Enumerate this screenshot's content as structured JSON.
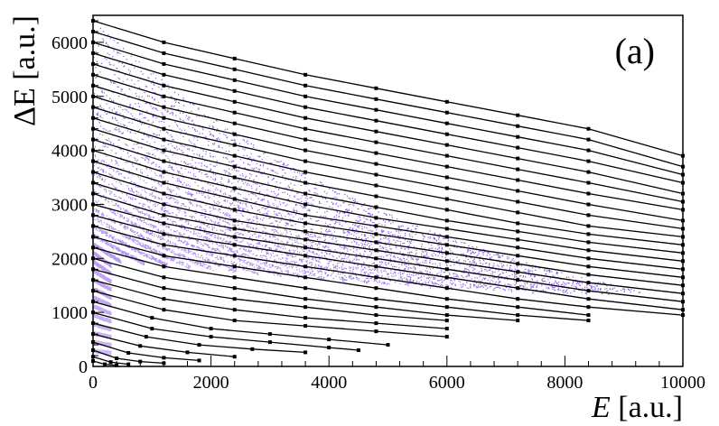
{
  "chart_data": {
    "type": "scatter",
    "panel_label": "(a)",
    "xlabel_var": "E",
    "xlabel_unit": " [a.u.]",
    "ylabel_var": "ΔE",
    "ylabel_unit": " [a.u.]",
    "xlim": [
      0,
      10000
    ],
    "ylim": [
      0,
      6500
    ],
    "x_ticks": [
      0,
      2000,
      4000,
      6000,
      8000,
      10000
    ],
    "y_ticks": [
      0,
      1000,
      2000,
      3000,
      4000,
      5000,
      6000
    ],
    "grid": false,
    "legend": "none",
    "colors": {
      "scatter": "#7b3fe4",
      "fit_lines": "#000000",
      "frame": "#000000"
    },
    "band_count": 38,
    "band_params": [
      {
        "y0": 6400,
        "k": 0.00016,
        "end_x": 9300,
        "alpha": 0.4
      },
      {
        "y0": 6250,
        "k": 0.00018,
        "end_x": 9200,
        "alpha": 0.45
      },
      {
        "y0": 6100,
        "k": 0.00019,
        "end_x": 9100,
        "alpha": 0.5
      },
      {
        "y0": 5950,
        "k": 0.0002,
        "end_x": 9000,
        "alpha": 0.55
      },
      {
        "y0": 5800,
        "k": 0.00021,
        "end_x": 8900,
        "alpha": 0.6
      },
      {
        "y0": 5650,
        "k": 0.00022,
        "end_x": 8800,
        "alpha": 0.65
      },
      {
        "y0": 5500,
        "k": 0.00023,
        "end_x": 8700,
        "alpha": 0.7
      }
    ],
    "fit_lines": [
      {
        "x": [
          0,
          1200,
          2400,
          3600,
          4800,
          6000,
          7200,
          8400,
          10000
        ],
        "y": [
          6400,
          6000,
          5700,
          5400,
          5150,
          4900,
          4650,
          4400,
          3900
        ]
      },
      {
        "x": [
          0,
          1200,
          2400,
          3600,
          4800,
          6000,
          7200,
          8400,
          10000
        ],
        "y": [
          6200,
          5800,
          5500,
          5200,
          4950,
          4700,
          4450,
          4200,
          3700
        ]
      },
      {
        "x": [
          0,
          1200,
          2400,
          3600,
          4800,
          6000,
          7200,
          8400,
          10000
        ],
        "y": [
          6000,
          5600,
          5300,
          5000,
          4750,
          4500,
          4250,
          4000,
          3550
        ]
      },
      {
        "x": [
          0,
          1200,
          2400,
          3600,
          4800,
          6000,
          7200,
          8400,
          10000
        ],
        "y": [
          5800,
          5400,
          5100,
          4800,
          4550,
          4300,
          4050,
          3800,
          3400
        ]
      },
      {
        "x": [
          0,
          1200,
          2400,
          3600,
          4800,
          6000,
          7200,
          8400,
          10000
        ],
        "y": [
          5600,
          5200,
          4900,
          4600,
          4350,
          4100,
          3850,
          3600,
          3200
        ]
      },
      {
        "x": [
          0,
          1200,
          2400,
          3600,
          4800,
          6000,
          7200,
          8400,
          10000
        ],
        "y": [
          5400,
          5000,
          4700,
          4400,
          4150,
          3900,
          3650,
          3400,
          3050
        ]
      },
      {
        "x": [
          0,
          1200,
          2400,
          3600,
          4800,
          6000,
          7200,
          8400,
          10000
        ],
        "y": [
          5200,
          4800,
          4500,
          4200,
          3950,
          3700,
          3450,
          3200,
          2900
        ]
      },
      {
        "x": [
          0,
          1200,
          2400,
          3600,
          4800,
          6000,
          7200,
          8400,
          10000
        ],
        "y": [
          5000,
          4600,
          4300,
          4000,
          3750,
          3500,
          3250,
          3000,
          2700
        ]
      },
      {
        "x": [
          0,
          1200,
          2400,
          3600,
          4800,
          6000,
          7200,
          8400,
          10000
        ],
        "y": [
          4800,
          4400,
          4100,
          3800,
          3550,
          3300,
          3050,
          2800,
          2550
        ]
      },
      {
        "x": [
          0,
          1200,
          2400,
          3600,
          4800,
          6000,
          7200,
          8400,
          10000
        ],
        "y": [
          4600,
          4200,
          3900,
          3600,
          3350,
          3100,
          2850,
          2600,
          2400
        ]
      },
      {
        "x": [
          0,
          1200,
          2400,
          3600,
          4800,
          6000,
          7200,
          8400,
          10000
        ],
        "y": [
          4400,
          4000,
          3700,
          3400,
          3150,
          2900,
          2650,
          2450,
          2250
        ]
      },
      {
        "x": [
          0,
          1200,
          2400,
          3600,
          4800,
          6000,
          7200,
          8400,
          10000
        ],
        "y": [
          4200,
          3800,
          3500,
          3200,
          2950,
          2700,
          2500,
          2300,
          2100
        ]
      },
      {
        "x": [
          0,
          1200,
          2400,
          3600,
          4800,
          6000,
          7200,
          8400,
          10000
        ],
        "y": [
          4000,
          3600,
          3300,
          3000,
          2750,
          2550,
          2350,
          2150,
          1950
        ]
      },
      {
        "x": [
          0,
          1200,
          2400,
          3600,
          4800,
          6000,
          7200,
          8400,
          10000
        ],
        "y": [
          3800,
          3400,
          3100,
          2800,
          2600,
          2400,
          2200,
          2000,
          1800
        ]
      },
      {
        "x": [
          0,
          1200,
          2400,
          3600,
          4800,
          6000,
          7200,
          8400,
          10000
        ],
        "y": [
          3600,
          3200,
          2900,
          2650,
          2450,
          2250,
          2050,
          1850,
          1650
        ]
      },
      {
        "x": [
          0,
          1200,
          2400,
          3600,
          4800,
          6000,
          7200,
          8400,
          10000
        ],
        "y": [
          3400,
          3000,
          2700,
          2500,
          2300,
          2100,
          1900,
          1700,
          1500
        ]
      },
      {
        "x": [
          0,
          1200,
          2400,
          3600,
          4800,
          6000,
          7200,
          8400,
          10000
        ],
        "y": [
          3200,
          2800,
          2550,
          2350,
          2150,
          1950,
          1750,
          1550,
          1350
        ]
      },
      {
        "x": [
          0,
          1200,
          2400,
          3600,
          4800,
          6000,
          7200,
          8400,
          10000
        ],
        "y": [
          3000,
          2650,
          2400,
          2200,
          2000,
          1800,
          1600,
          1400,
          1200
        ]
      },
      {
        "x": [
          0,
          1200,
          2400,
          3600,
          4800,
          6000,
          7200,
          8400,
          10000
        ],
        "y": [
          2800,
          2450,
          2250,
          2050,
          1850,
          1650,
          1450,
          1250,
          1050
        ]
      },
      {
        "x": [
          0,
          1200,
          2400,
          3600,
          4800,
          6000,
          7200,
          8400,
          10000
        ],
        "y": [
          2600,
          2250,
          2050,
          1850,
          1650,
          1450,
          1250,
          1100,
          950
        ]
      },
      {
        "x": [
          0,
          1200,
          2400,
          3600,
          4800,
          6000,
          7200,
          8400
        ],
        "y": [
          2400,
          2050,
          1850,
          1650,
          1450,
          1250,
          1100,
          950
        ]
      },
      {
        "x": [
          0,
          1200,
          2400,
          3600,
          4800,
          6000,
          7200,
          8400
        ],
        "y": [
          2200,
          1850,
          1650,
          1450,
          1250,
          1100,
          950,
          850
        ]
      },
      {
        "x": [
          0,
          1200,
          2400,
          3600,
          4800,
          6000,
          7200
        ],
        "y": [
          2000,
          1650,
          1450,
          1250,
          1100,
          950,
          850
        ]
      },
      {
        "x": [
          0,
          1200,
          2400,
          3600,
          4800,
          6000
        ],
        "y": [
          1800,
          1450,
          1250,
          1100,
          950,
          850
        ]
      },
      {
        "x": [
          0,
          1200,
          2400,
          3600,
          4800,
          6000
        ],
        "y": [
          1600,
          1250,
          1050,
          900,
          800,
          700
        ]
      },
      {
        "x": [
          0,
          1200,
          2400,
          3600,
          4800,
          6000
        ],
        "y": [
          1400,
          1050,
          850,
          750,
          650,
          550
        ]
      },
      {
        "x": [
          0,
          1000,
          2000,
          3000,
          4000,
          5000
        ],
        "y": [
          1200,
          900,
          700,
          600,
          500,
          400
        ]
      },
      {
        "x": [
          0,
          1000,
          2000,
          3000,
          4000,
          4500
        ],
        "y": [
          1000,
          700,
          550,
          450,
          350,
          300
        ]
      },
      {
        "x": [
          0,
          900,
          1800,
          2700,
          3600
        ],
        "y": [
          800,
          550,
          400,
          320,
          260
        ]
      },
      {
        "x": [
          0,
          800,
          1600,
          2400
        ],
        "y": [
          600,
          380,
          260,
          180
        ]
      },
      {
        "x": [
          0,
          600,
          1200,
          1800
        ],
        "y": [
          450,
          250,
          160,
          110
        ]
      },
      {
        "x": [
          0,
          400,
          800,
          1200
        ],
        "y": [
          300,
          150,
          90,
          60
        ]
      },
      {
        "x": [
          0,
          300,
          600
        ],
        "y": [
          180,
          80,
          40
        ]
      },
      {
        "x": [
          0,
          200,
          400
        ],
        "y": [
          100,
          40,
          20
        ]
      }
    ]
  }
}
